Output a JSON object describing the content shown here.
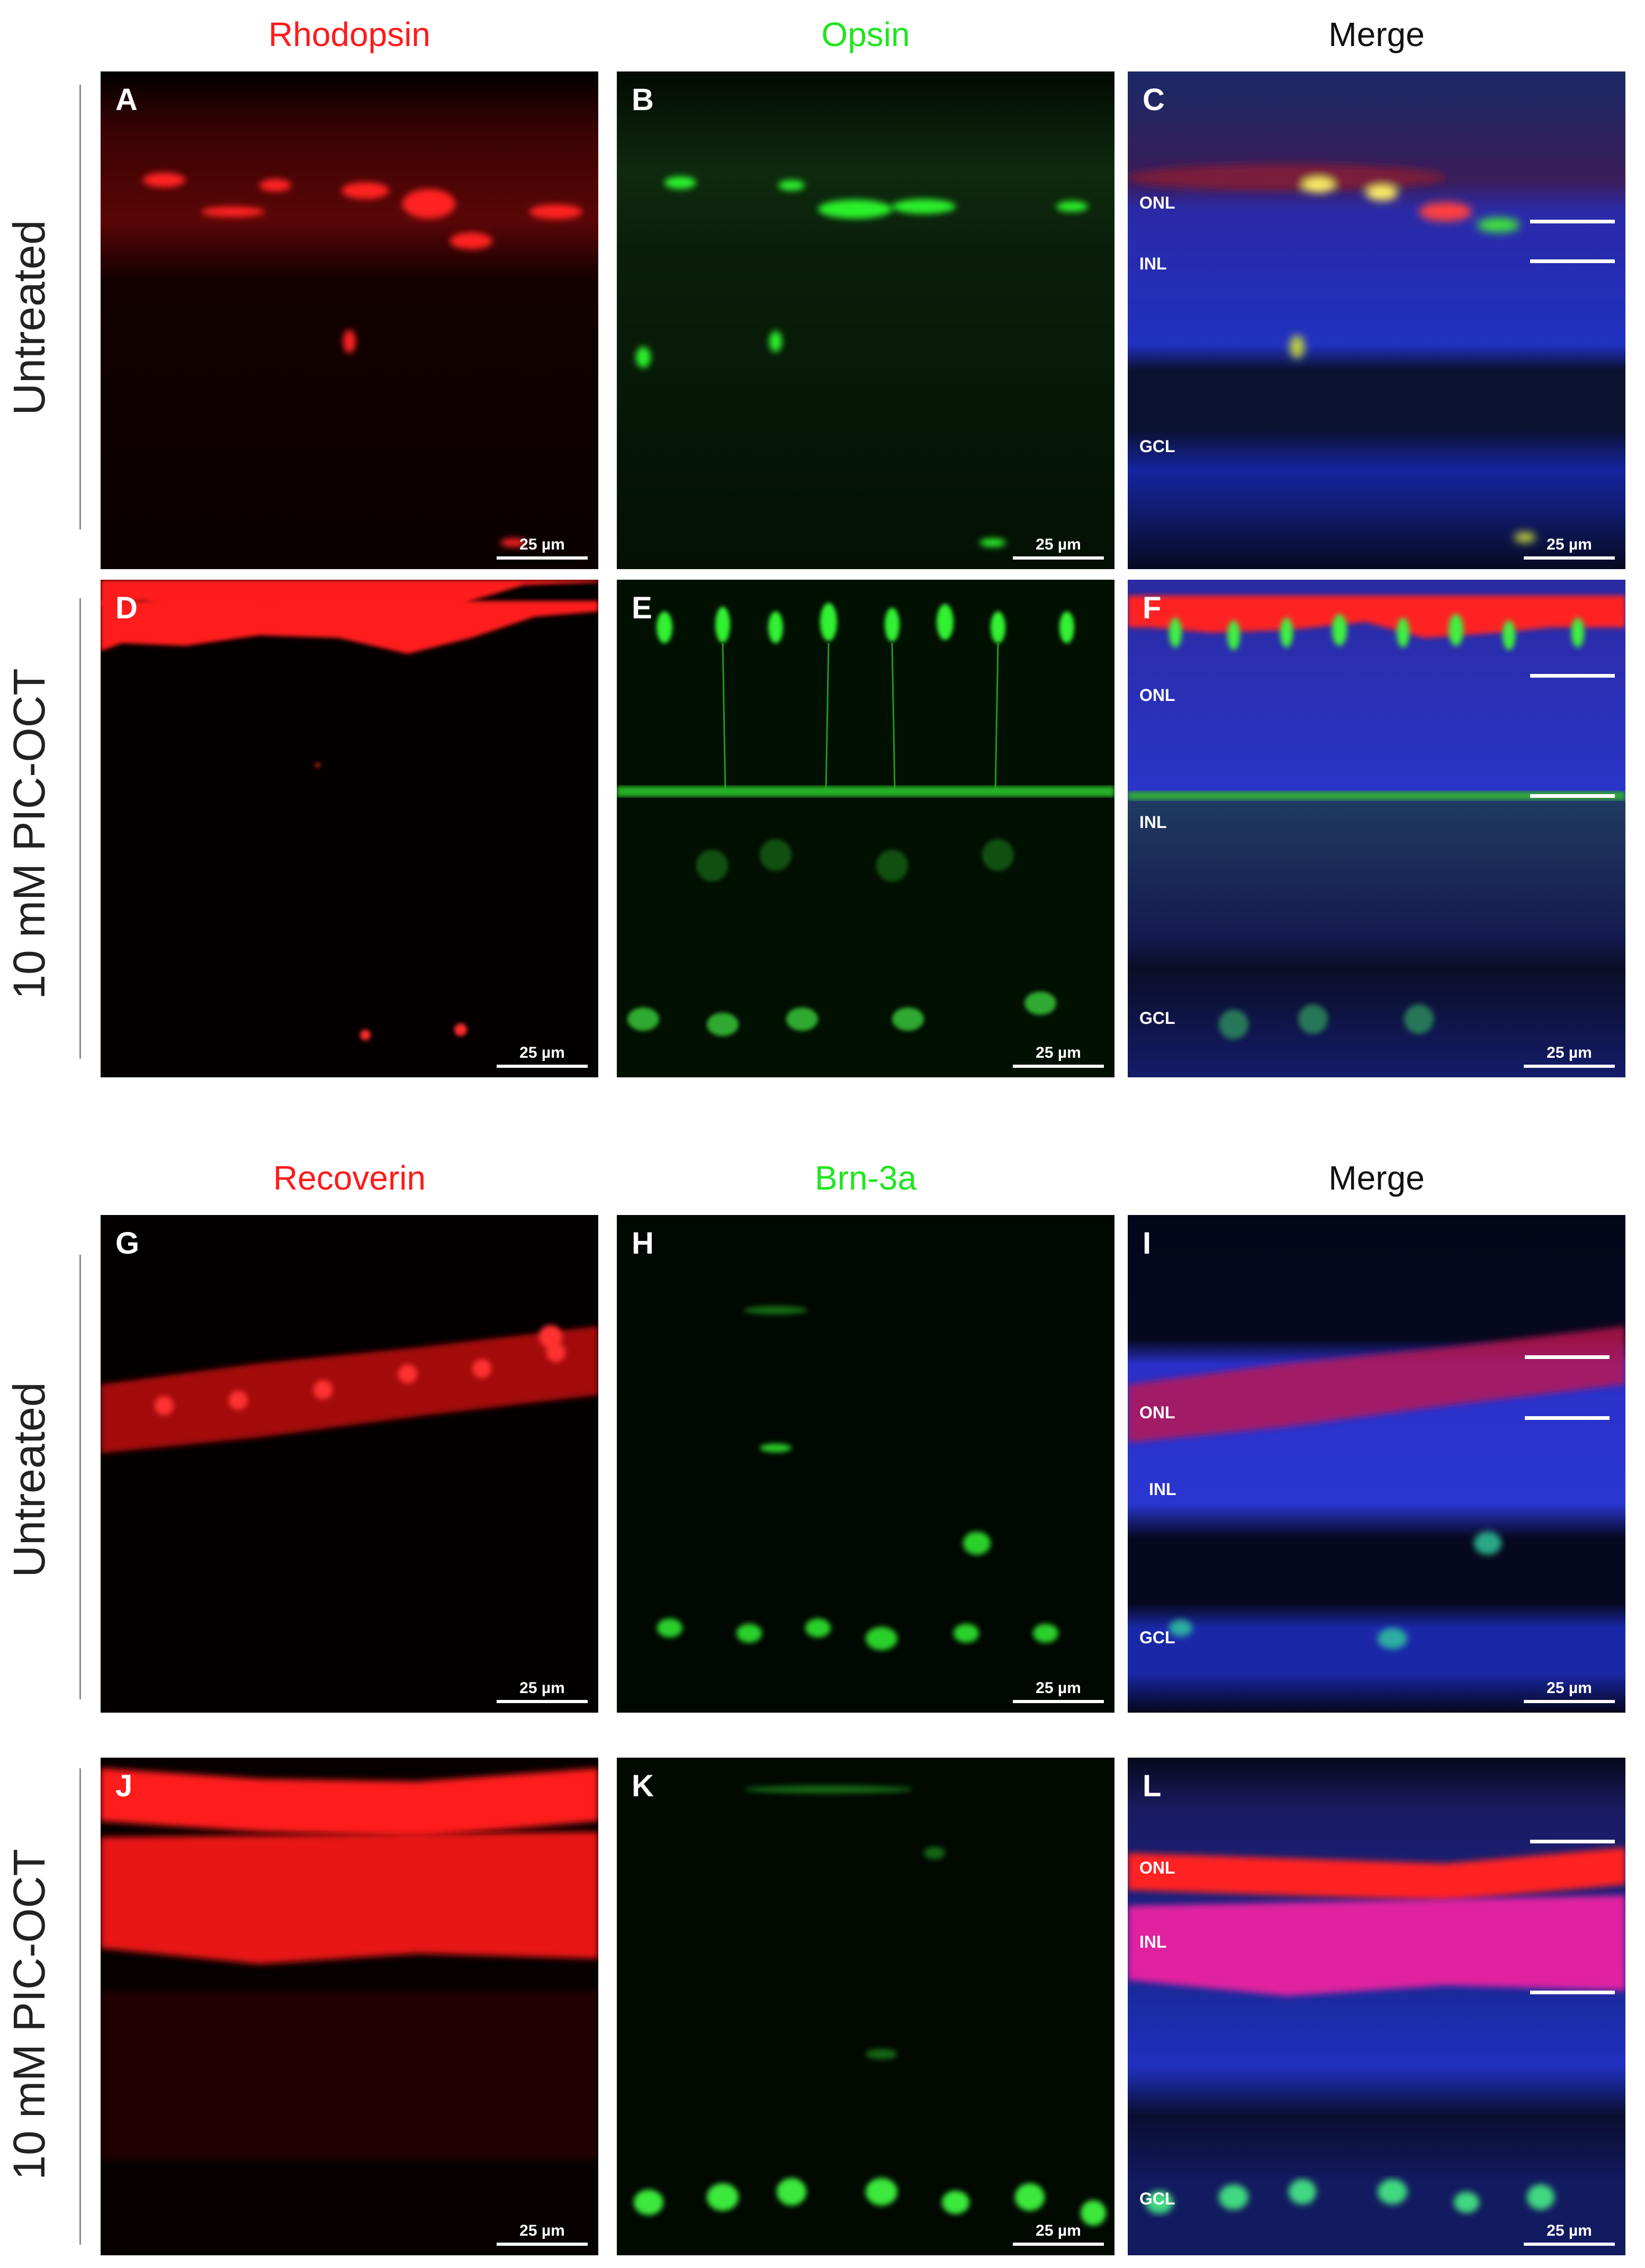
{
  "top_block": {
    "columns": [
      {
        "title": "Rhodopsin",
        "color": "#ff1a1a"
      },
      {
        "title": "Opsin",
        "color": "#1ee61e"
      },
      {
        "title": "Merge",
        "color": "#111111"
      }
    ],
    "rows": [
      "Untreated",
      "10 mM PIC-OCT"
    ]
  },
  "bottom_block": {
    "columns": [
      {
        "title": "Recoverin",
        "color": "#ff1a1a"
      },
      {
        "title": "Brn-3a",
        "color": "#1ee61e"
      },
      {
        "title": "Merge",
        "color": "#111111"
      }
    ],
    "rows": [
      "Untreated",
      "10 mM PIC-OCT"
    ]
  },
  "panels": {
    "A": {
      "label": "A"
    },
    "B": {
      "label": "B"
    },
    "C": {
      "label": "C",
      "layers": [
        "ONL",
        "INL",
        "GCL"
      ]
    },
    "D": {
      "label": "D"
    },
    "E": {
      "label": "E"
    },
    "F": {
      "label": "F",
      "layers": [
        "ONL",
        "INL",
        "GCL"
      ]
    },
    "G": {
      "label": "G"
    },
    "H": {
      "label": "H"
    },
    "I": {
      "label": "I",
      "layers": [
        "ONL",
        "INL",
        "GCL"
      ]
    },
    "J": {
      "label": "J"
    },
    "K": {
      "label": "K"
    },
    "L": {
      "label": "L",
      "layers": [
        "ONL",
        "INL",
        "GCL"
      ]
    }
  },
  "scale_bar": "25 µm"
}
